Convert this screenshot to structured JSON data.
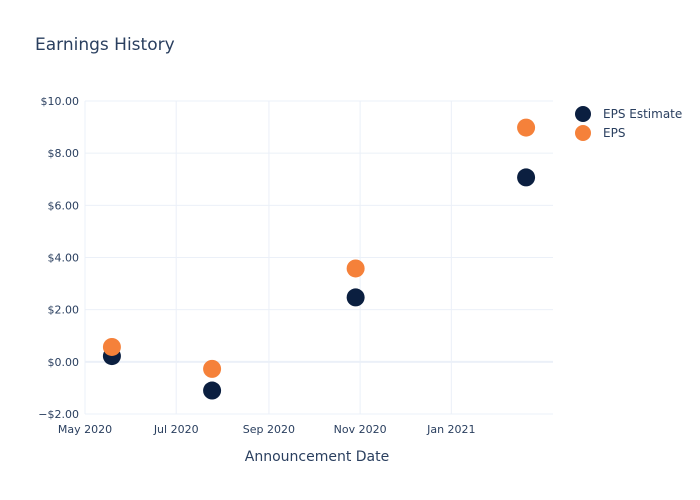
{
  "chart_data": {
    "type": "scatter",
    "title": "Earnings History",
    "xlabel": "Announcement Date",
    "ylabel": "",
    "x_ticks": [
      {
        "label": "May 2020",
        "date": "2020-05-01"
      },
      {
        "label": "Jul 2020",
        "date": "2020-07-01"
      },
      {
        "label": "Sep 2020",
        "date": "2020-09-01"
      },
      {
        "label": "Nov 2020",
        "date": "2020-11-01"
      },
      {
        "label": "Jan 2021",
        "date": "2021-01-01"
      }
    ],
    "xlim": [
      "2020-05-01",
      "2021-03-10"
    ],
    "y_ticks": [
      {
        "label": "−$2.00",
        "value": -2
      },
      {
        "label": "$0.00",
        "value": 0
      },
      {
        "label": "$2.00",
        "value": 2
      },
      {
        "label": "$4.00",
        "value": 4
      },
      {
        "label": "$6.00",
        "value": 6
      },
      {
        "label": "$8.00",
        "value": 8
      },
      {
        "label": "$10.00",
        "value": 10
      }
    ],
    "ylim": [
      -2,
      10
    ],
    "grid": true,
    "legend_position": "top-right",
    "series": [
      {
        "name": "EPS Estimate",
        "color": "#0b1f40",
        "points": [
          {
            "x": "2020-05-19",
            "y": 0.22
          },
          {
            "x": "2020-07-25",
            "y": -1.1
          },
          {
            "x": "2020-10-29",
            "y": 2.47
          },
          {
            "x": "2021-02-20",
            "y": 7.07
          }
        ]
      },
      {
        "name": "EPS",
        "color": "#f5813a",
        "points": [
          {
            "x": "2020-05-19",
            "y": 0.57
          },
          {
            "x": "2020-07-25",
            "y": -0.27
          },
          {
            "x": "2020-10-29",
            "y": 3.58
          },
          {
            "x": "2021-02-20",
            "y": 8.98
          }
        ]
      }
    ]
  }
}
